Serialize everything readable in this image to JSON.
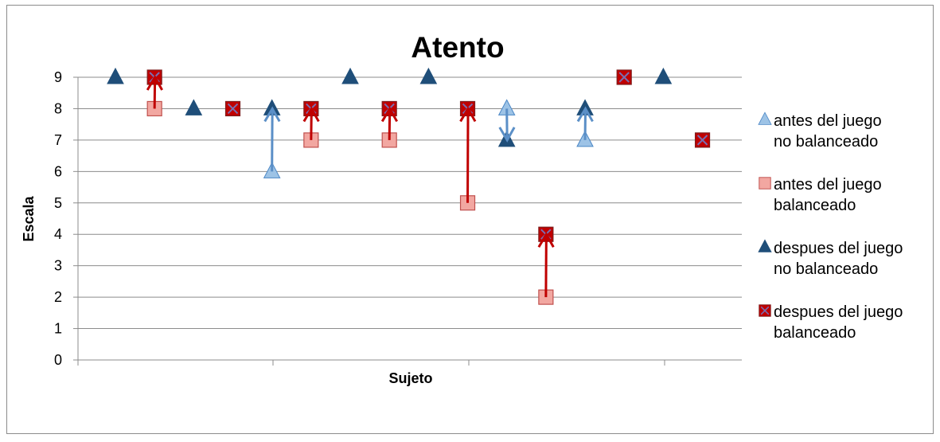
{
  "chart_data": {
    "type": "scatter",
    "title": "Atento",
    "xlabel": "Sujeto",
    "ylabel": "Escala",
    "ylim": [
      0,
      9
    ],
    "yticks": [
      "0",
      "1",
      "2",
      "3",
      "4",
      "5",
      "6",
      "7",
      "8",
      "9"
    ],
    "grid": true,
    "legend_position": "right",
    "subjects": [
      1,
      2,
      3,
      4,
      5,
      6,
      7,
      8,
      9,
      10,
      11,
      12,
      13,
      14,
      15,
      16
    ],
    "series": [
      {
        "name": "antes del juego no balanceado",
        "marker": "triangle-light",
        "color": "#9dc3e6",
        "stroke": "#4a86c5",
        "points": [
          [
            5,
            6
          ],
          [
            11,
            8
          ],
          [
            13,
            7
          ]
        ]
      },
      {
        "name": "antes del juego balanceado",
        "marker": "square-light",
        "color": "#f2a7a1",
        "stroke": "#c0504d",
        "points": [
          [
            2,
            8
          ],
          [
            6,
            7
          ],
          [
            8,
            7
          ],
          [
            10,
            5
          ],
          [
            12,
            2
          ]
        ]
      },
      {
        "name": "despues del juego no balanceado",
        "marker": "triangle-dark",
        "color": "#1f4e79",
        "stroke": "#1f4e79",
        "points": [
          [
            1,
            9
          ],
          [
            3,
            8
          ],
          [
            5,
            8
          ],
          [
            7,
            9
          ],
          [
            9,
            9
          ],
          [
            11,
            7
          ],
          [
            13,
            8
          ],
          [
            15,
            9
          ]
        ]
      },
      {
        "name": "despues del juego balanceado",
        "marker": "square-x",
        "color": "#c00000",
        "stroke": "#7f1d1d",
        "points": [
          [
            2,
            9
          ],
          [
            4,
            8
          ],
          [
            6,
            8
          ],
          [
            8,
            8
          ],
          [
            10,
            8
          ],
          [
            12,
            4
          ],
          [
            14,
            9
          ],
          [
            16,
            7
          ]
        ]
      }
    ],
    "arrows": [
      {
        "x": 2,
        "from": 8,
        "to": 9,
        "color": "#c00000"
      },
      {
        "x": 5,
        "from": 6,
        "to": 8,
        "color": "#5b8fc7"
      },
      {
        "x": 6,
        "from": 7,
        "to": 8,
        "color": "#c00000"
      },
      {
        "x": 8,
        "from": 7,
        "to": 8,
        "color": "#c00000"
      },
      {
        "x": 10,
        "from": 5,
        "to": 8,
        "color": "#c00000"
      },
      {
        "x": 11,
        "from": 8,
        "to": 7,
        "color": "#5b8fc7"
      },
      {
        "x": 12,
        "from": 2,
        "to": 4,
        "color": "#c00000"
      },
      {
        "x": 13,
        "from": 7,
        "to": 8,
        "color": "#5b8fc7"
      }
    ],
    "legend": [
      {
        "line1": "antes del juego",
        "line2": "no balanceado",
        "marker": "triangle-light"
      },
      {
        "line1": "antes del juego",
        "line2": "balanceado",
        "marker": "square-light"
      },
      {
        "line1": "despues del juego",
        "line2": "no balanceado",
        "marker": "triangle-dark"
      },
      {
        "line1": "despues del juego",
        "line2": "balanceado",
        "marker": "square-x"
      }
    ]
  }
}
